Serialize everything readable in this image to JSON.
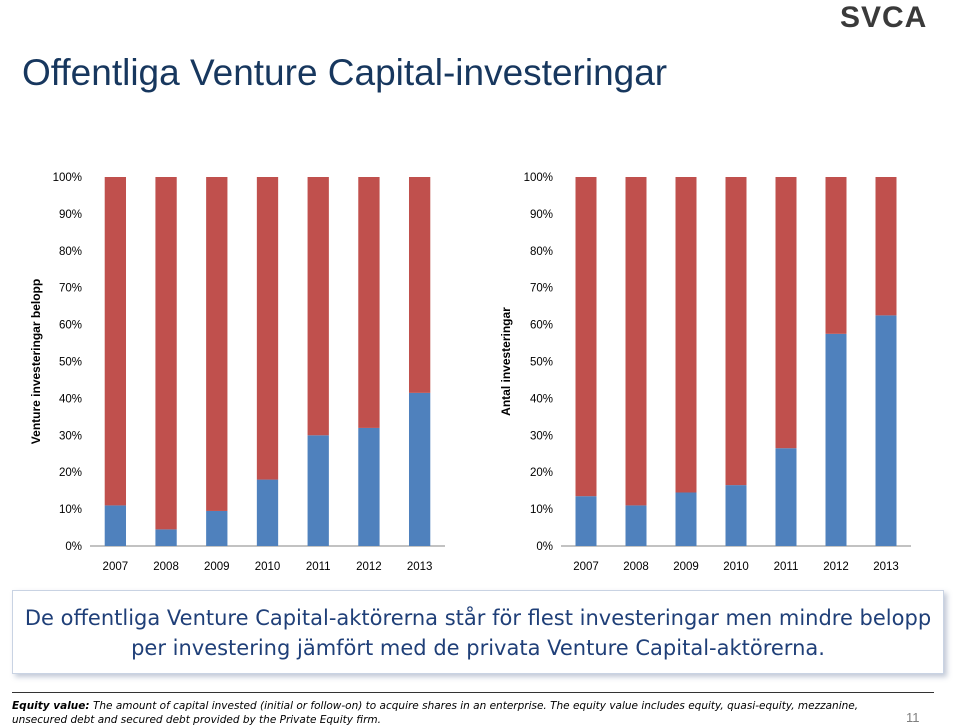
{
  "logo": {
    "text": "SVCA"
  },
  "page": {
    "title": "Offentliga Venture Capital-investeringar",
    "callout_line1": "De offentliga Venture Capital-aktörerna står för flest investeringar men mindre belopp",
    "callout_line2": "per investering jämfört med de privata Venture Capital-aktörerna.",
    "footnote_label": "Equity value:",
    "footnote_text": " The amount of capital invested (initial or follow-on)  to acquire shares in an enterprise.  The equity value includes equity, quasi-equity, mezzanine, unsecured debt and secured debt provided by the Private Equity  firm.",
    "page_number": "11"
  },
  "colors": {
    "public": "#4f81bd",
    "private": "#c0504d",
    "axis": "#868686",
    "text": "#000000"
  },
  "chart_data": [
    {
      "type": "bar",
      "stacked": "percent",
      "ylabel": "Venture investeringar belopp",
      "yticks": [
        "0%",
        "10%",
        "20%",
        "30%",
        "40%",
        "50%",
        "60%",
        "70%",
        "80%",
        "90%",
        "100%"
      ],
      "ylim": [
        0,
        100
      ],
      "categories": [
        "2007",
        "2008",
        "2009",
        "2010",
        "2011",
        "2012",
        "2013"
      ],
      "series": [
        {
          "values": [
            11,
            4.5,
            9.5,
            18,
            30,
            32,
            41.5
          ],
          "color": "#4f81bd"
        },
        {
          "values": [
            89,
            95.5,
            90.5,
            82,
            70,
            68,
            58.5
          ],
          "color": "#c0504d"
        }
      ]
    },
    {
      "type": "bar",
      "stacked": "percent",
      "ylabel": "Antal investeringar",
      "yticks": [
        "0%",
        "10%",
        "20%",
        "30%",
        "40%",
        "50%",
        "60%",
        "70%",
        "80%",
        "90%",
        "100%"
      ],
      "ylim": [
        0,
        100
      ],
      "categories": [
        "2007",
        "2008",
        "2009",
        "2010",
        "2011",
        "2012",
        "2013"
      ],
      "series": [
        {
          "values": [
            13.5,
            11,
            14.5,
            16.5,
            26.5,
            57.5,
            62.5
          ],
          "color": "#4f81bd"
        },
        {
          "values": [
            86.5,
            89,
            85.5,
            83.5,
            73.5,
            42.5,
            37.5
          ],
          "color": "#c0504d"
        }
      ]
    }
  ]
}
